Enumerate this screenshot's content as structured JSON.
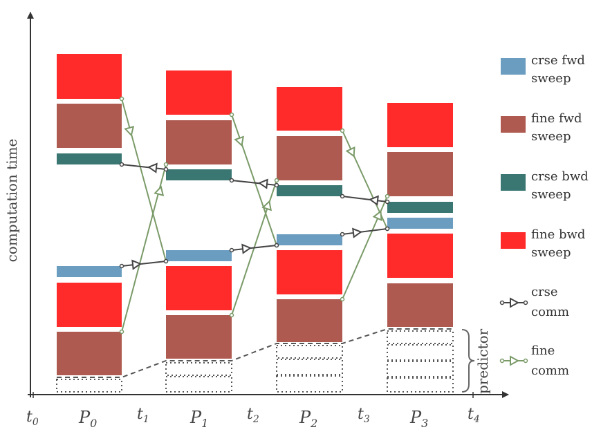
{
  "diagram": {
    "y_axis_label": "computation time",
    "time_ticks": [
      {
        "base": "t",
        "sub": "0"
      },
      {
        "base": "t",
        "sub": "1"
      },
      {
        "base": "t",
        "sub": "2"
      },
      {
        "base": "t",
        "sub": "3"
      },
      {
        "base": "t",
        "sub": "4"
      }
    ],
    "processors": [
      {
        "base": "P",
        "sub": "0"
      },
      {
        "base": "P",
        "sub": "1"
      },
      {
        "base": "P",
        "sub": "2"
      },
      {
        "base": "P",
        "sub": "3"
      }
    ],
    "brace_label": "predictor",
    "legend": [
      {
        "line1": "crse fwd",
        "line2": "sweep",
        "kind": "box",
        "color": "#6B9DC0"
      },
      {
        "line1": "fine fwd",
        "line2": "sweep",
        "kind": "box",
        "color": "#AE5A50"
      },
      {
        "line1": "crse bwd",
        "line2": "sweep",
        "kind": "box",
        "color": "#3A7772"
      },
      {
        "line1": "fine bwd",
        "line2": "sweep",
        "kind": "box",
        "color": "#FF2A2A"
      },
      {
        "line1": "crse",
        "line2": "comm",
        "kind": "arrow",
        "color": "#444444"
      },
      {
        "line1": "fine",
        "line2": "comm",
        "kind": "arrow",
        "color": "#7A9A68"
      }
    ],
    "colors": {
      "crse_fwd": "#6B9DC0",
      "fine_fwd": "#AE5A50",
      "crse_bwd": "#3A7772",
      "fine_bwd": "#FF2A2A",
      "crse_comm": "#444444",
      "fine_comm": "#7A9A68",
      "axis": "#333333",
      "predictor": "#666666"
    }
  }
}
